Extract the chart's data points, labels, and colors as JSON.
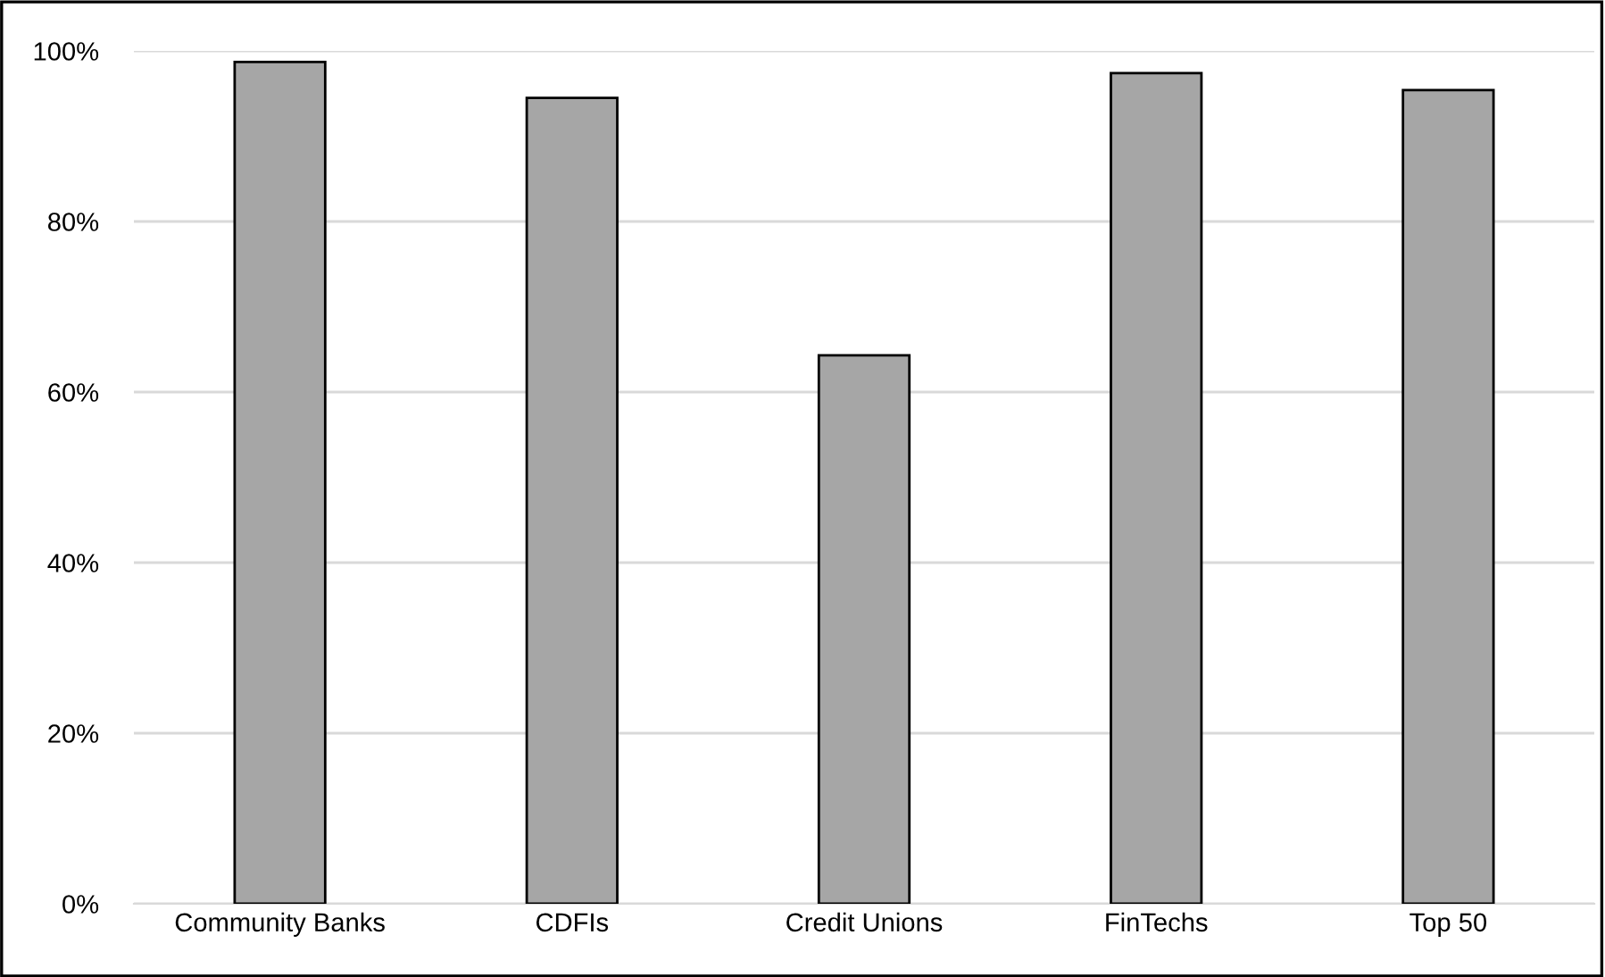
{
  "chart_data": {
    "type": "bar",
    "categories": [
      "Community Banks",
      "CDFIs",
      "Credit Unions",
      "FinTechs",
      "Top 50"
    ],
    "values": [
      98.7,
      94.5,
      64.3,
      97.4,
      95.4
    ],
    "color": "#a6a6a6",
    "ylim": [
      0,
      100
    ],
    "yticks": [
      {
        "value": 0,
        "label": "0%"
      },
      {
        "value": 20,
        "label": "20%"
      },
      {
        "value": 40,
        "label": "40%"
      },
      {
        "value": 60,
        "label": "60%"
      },
      {
        "value": 80,
        "label": "80%"
      },
      {
        "value": 100,
        "label": "100%"
      }
    ],
    "grid": "y",
    "legend": false
  }
}
